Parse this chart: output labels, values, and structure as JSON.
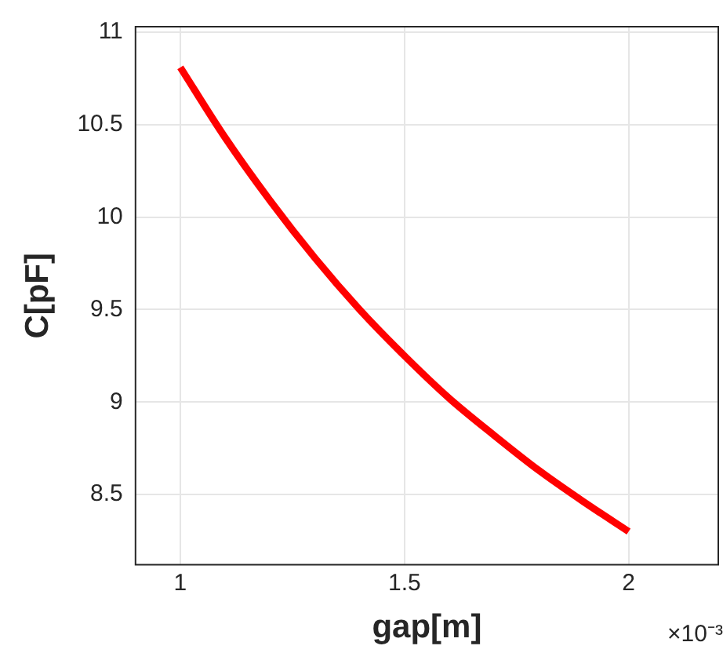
{
  "chart_data": {
    "type": "line",
    "xlabel": "gap[m]",
    "ylabel": "C[pF]",
    "x": [
      1,
      1.1,
      1.2,
      1.3,
      1.4,
      1.5,
      1.6,
      1.7,
      1.8,
      1.9,
      2
    ],
    "series": [
      {
        "color": "#ff0000",
        "values": [
          10.81,
          10.43,
          10.09,
          9.78,
          9.5,
          9.25,
          9.02,
          8.82,
          8.63,
          8.46,
          8.3
        ]
      }
    ],
    "xlim": [
      0.9,
      2.2
    ],
    "xticks": [
      1,
      1.5,
      2
    ],
    "ylim": [
      8.12,
      11.03
    ],
    "yticks": [
      8.5,
      9,
      9.5,
      10,
      10.5,
      11
    ],
    "annotations": [
      "×10⁻³"
    ],
    "grid": true,
    "legend": false,
    "marker": "none",
    "line_style": "solid"
  }
}
